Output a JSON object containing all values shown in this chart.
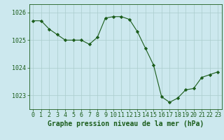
{
  "x": [
    0,
    1,
    2,
    3,
    4,
    5,
    6,
    7,
    8,
    9,
    10,
    11,
    12,
    13,
    14,
    15,
    16,
    17,
    18,
    19,
    20,
    21,
    22,
    23
  ],
  "y": [
    1025.7,
    1025.7,
    1025.4,
    1025.2,
    1025.0,
    1025.0,
    1025.0,
    1024.85,
    1025.1,
    1025.8,
    1025.85,
    1025.85,
    1025.75,
    1025.3,
    1024.7,
    1024.1,
    1022.95,
    1022.75,
    1022.9,
    1023.2,
    1023.25,
    1023.65,
    1023.75,
    1023.85
  ],
  "line_color": "#1a5c1a",
  "marker": "D",
  "marker_size": 2.2,
  "bg_color": "#cce8ee",
  "grid_color": "#aacccc",
  "axis_color": "#1a5c1a",
  "xlabel": "Graphe pression niveau de la mer (hPa)",
  "xlabel_fontsize": 7,
  "tick_fontsize": 6,
  "ylabel_ticks": [
    1023,
    1024,
    1025,
    1026
  ],
  "ylim": [
    1022.5,
    1026.3
  ],
  "xlim": [
    -0.5,
    23.5
  ]
}
